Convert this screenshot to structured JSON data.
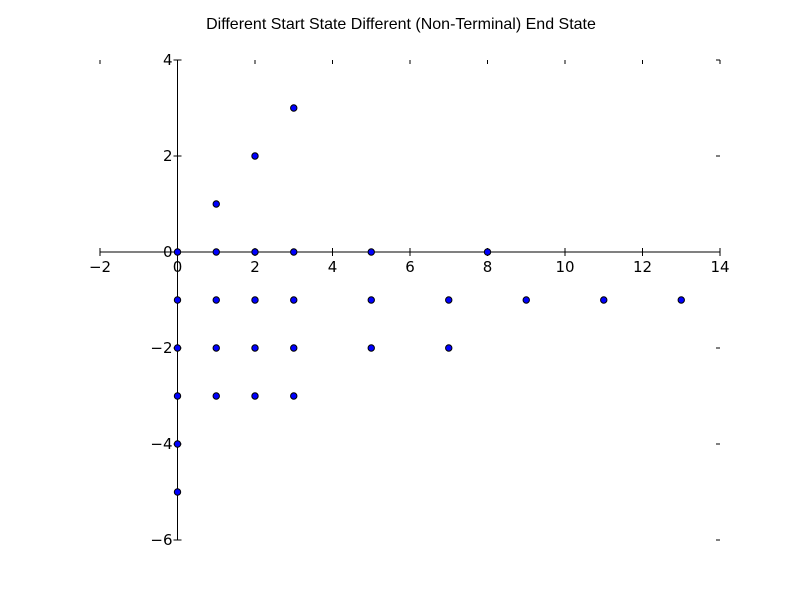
{
  "chart_data": {
    "type": "scatter",
    "title": "Different Start State Different (Non-Terminal) End State",
    "xlabel": "",
    "ylabel": "",
    "xlim": [
      -2,
      14
    ],
    "ylim": [
      -6,
      4
    ],
    "xticks": [
      -2,
      0,
      2,
      4,
      6,
      8,
      10,
      12,
      14
    ],
    "yticks": [
      -6,
      -4,
      -2,
      0,
      2,
      4
    ],
    "xtick_labels": [
      "−2",
      "0",
      "2",
      "4",
      "6",
      "8",
      "10",
      "12",
      "14"
    ],
    "ytick_labels": [
      "−6",
      "−4",
      "−2",
      "0",
      "2",
      "4"
    ],
    "spines": "centered-at-origin",
    "grid": false,
    "marker_color": "#0000ff",
    "points": [
      [
        0,
        0
      ],
      [
        1,
        0
      ],
      [
        2,
        0
      ],
      [
        3,
        0
      ],
      [
        5,
        0
      ],
      [
        8,
        0
      ],
      [
        1,
        1
      ],
      [
        2,
        2
      ],
      [
        3,
        3
      ],
      [
        0,
        -1
      ],
      [
        1,
        -1
      ],
      [
        2,
        -1
      ],
      [
        3,
        -1
      ],
      [
        5,
        -1
      ],
      [
        7,
        -1
      ],
      [
        9,
        -1
      ],
      [
        11,
        -1
      ],
      [
        13,
        -1
      ],
      [
        0,
        -2
      ],
      [
        1,
        -2
      ],
      [
        2,
        -2
      ],
      [
        3,
        -2
      ],
      [
        5,
        -2
      ],
      [
        7,
        -2
      ],
      [
        0,
        -3
      ],
      [
        1,
        -3
      ],
      [
        2,
        -3
      ],
      [
        3,
        -3
      ],
      [
        0,
        -4
      ],
      [
        0,
        -5
      ]
    ]
  }
}
